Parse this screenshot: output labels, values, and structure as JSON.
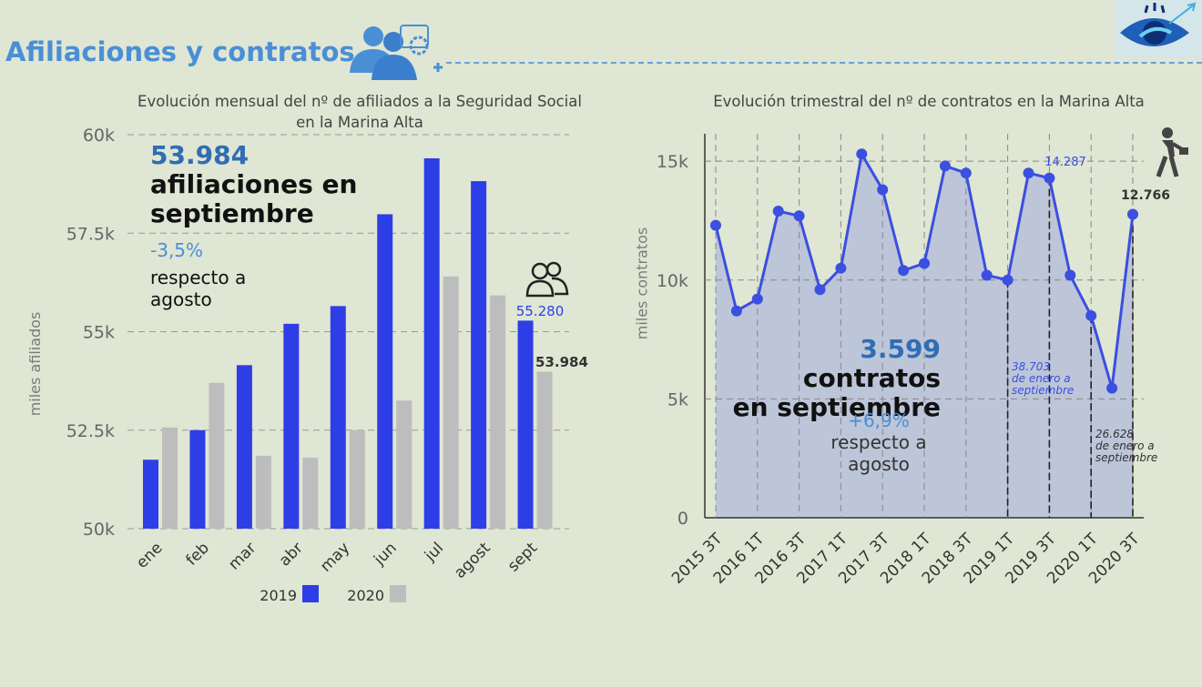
{
  "header": {
    "title": "Afiliaciones y contratos"
  },
  "colors": {
    "s2019": "#2e3ee6",
    "s2020": "#bdbdbd",
    "accent": "#4a8fd6",
    "line": "#3b4fe0",
    "area": "#aab3dc"
  },
  "left": {
    "callout": {
      "number": "53.984",
      "text_line1": "afiliaciones en",
      "text_line2": "septiembre",
      "pct": "-3,5%",
      "sub_line1": "respecto a",
      "sub_line2": "agosto"
    },
    "label_2019_sept": "55.280",
    "label_2020_sept": "53.984"
  },
  "right": {
    "callout": {
      "number": "3.599",
      "text_line1": "contratos",
      "text_line2": "en septiembre",
      "pct": "+6,9%",
      "sub_line1": "respecto a",
      "sub_line2": "agosto"
    },
    "note_2019": [
      "38.703",
      "de enero a",
      "septiembre"
    ],
    "note_2020": [
      "26.628",
      "de enero a",
      "septiembre"
    ],
    "label_peak": "14.287",
    "label_last": "12.766"
  },
  "chart_data": [
    {
      "type": "bar",
      "title": "Evolución mensual del nº de afiliados a la Seguridad Social en la Marina Alta",
      "ylabel": "miles afiliados",
      "ylim": [
        50,
        60
      ],
      "yticks": [
        "50k",
        "52.5k",
        "55k",
        "57.5k",
        "60k"
      ],
      "ytick_values": [
        50,
        52.5,
        55,
        57.5,
        60
      ],
      "categories": [
        "ene",
        "feb",
        "mar",
        "abr",
        "may",
        "jun",
        "jul",
        "agost",
        "sept"
      ],
      "series": [
        {
          "name": "2019",
          "values": [
            51.75,
            52.5,
            54.15,
            55.2,
            55.65,
            57.98,
            59.4,
            58.82,
            55.28
          ]
        },
        {
          "name": "2020",
          "values": [
            52.57,
            53.7,
            51.85,
            51.8,
            52.5,
            53.25,
            56.4,
            55.92,
            53.984
          ]
        }
      ],
      "legend": "bottom"
    },
    {
      "type": "line",
      "title": "Evolución trimestral del nº de contratos en la Marina Alta",
      "ylabel": "miles contratos",
      "ylim": [
        0,
        16000
      ],
      "yticks": [
        "0",
        "5k",
        "10k",
        "15k"
      ],
      "ytick_values": [
        0,
        5000,
        10000,
        15000
      ],
      "x": [
        "2015 3T",
        "2015 4T",
        "2016 1T",
        "2016 2T",
        "2016 3T",
        "2016 4T",
        "2017 1T",
        "2017 2T",
        "2017 3T",
        "2017 4T",
        "2018 1T",
        "2018 2T",
        "2018 3T",
        "2018 4T",
        "2019 1T",
        "2019 2T",
        "2019 3T",
        "2019 4T",
        "2020 1T",
        "2020 2T",
        "2020 3T"
      ],
      "xtick_labels": [
        "2015 3T",
        "2016 1T",
        "2016 3T",
        "2017 1T",
        "2017 3T",
        "2018 1T",
        "2018 3T",
        "2019 1T",
        "2019 3T",
        "2020 1T",
        "2020 3T"
      ],
      "series": [
        {
          "name": "contratos",
          "values": [
            12300,
            8700,
            9200,
            12900,
            12700,
            9600,
            10500,
            15300,
            13800,
            10400,
            10700,
            14800,
            14500,
            10200,
            10000,
            14500,
            14287,
            10200,
            8500,
            5450,
            12766
          ]
        }
      ]
    }
  ]
}
